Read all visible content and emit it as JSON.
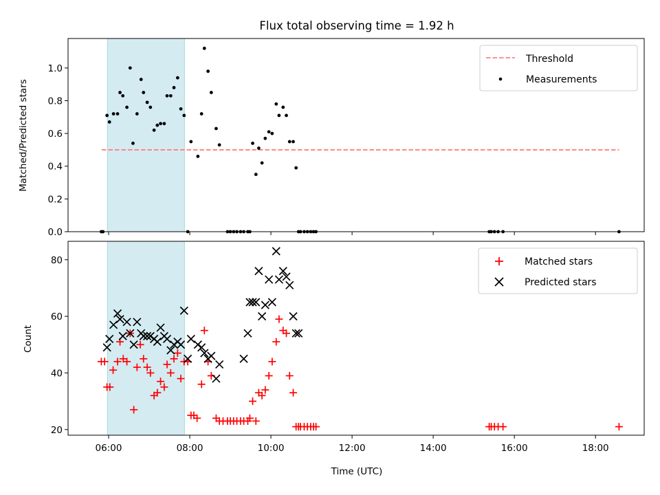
{
  "figure": {
    "title": "Flux total observing time = 1.92 h",
    "xlabel": "Time (UTC)",
    "xlim": [
      5.0,
      19.2
    ],
    "xticks": [
      6,
      8,
      10,
      12,
      14,
      16,
      18
    ],
    "xtick_labels": [
      "06:00",
      "08:00",
      "10:00",
      "12:00",
      "14:00",
      "16:00",
      "18:00"
    ],
    "shaded_interval": [
      5.97,
      7.87
    ],
    "colors": {
      "shade": "#add8e6",
      "threshold": "#ff8080",
      "measurement": "#000000",
      "matched": "#ff0000",
      "predicted": "#000000"
    }
  },
  "chart_data": [
    {
      "type": "scatter",
      "panel": "top",
      "ylabel": "Matched/Predicted stars",
      "ylim": [
        0,
        1.18
      ],
      "yticks": [
        0.0,
        0.2,
        0.4,
        0.6,
        0.8,
        1.0
      ],
      "ytick_labels": [
        "0.0",
        "0.2",
        "0.4",
        "0.6",
        "0.8",
        "1.0"
      ],
      "legend": {
        "position": "upper-right",
        "threshold_label": "Threshold",
        "measurements_label": "Measurements"
      },
      "threshold": {
        "value": 0.5,
        "x_range": [
          5.83,
          18.58
        ]
      },
      "series": [
        {
          "name": "Measurements",
          "x": [
            5.82,
            5.86,
            5.96,
            6.02,
            6.12,
            6.22,
            6.28,
            6.35,
            6.45,
            6.53,
            6.6,
            6.7,
            6.8,
            6.86,
            6.95,
            7.03,
            7.12,
            7.2,
            7.28,
            7.37,
            7.44,
            7.53,
            7.61,
            7.7,
            7.78,
            7.86,
            7.95,
            8.03,
            8.2,
            8.29,
            8.36,
            8.45,
            8.53,
            8.65,
            8.73,
            8.93,
            9.0,
            9.08,
            9.16,
            9.25,
            9.33,
            9.43,
            9.48,
            9.55,
            9.63,
            9.7,
            9.78,
            9.86,
            9.95,
            10.03,
            10.13,
            10.2,
            10.3,
            10.38,
            10.46,
            10.55,
            10.62,
            10.68,
            10.73,
            10.82,
            10.9,
            10.98,
            11.05,
            11.11,
            15.38,
            15.43,
            15.51,
            15.6,
            15.72,
            18.58
          ],
          "y": [
            0.0,
            0.0,
            0.71,
            0.67,
            0.72,
            0.72,
            0.85,
            0.83,
            0.76,
            1.0,
            0.54,
            0.72,
            0.93,
            0.85,
            0.79,
            0.76,
            0.62,
            0.65,
            0.66,
            0.66,
            0.83,
            0.83,
            0.88,
            0.94,
            0.75,
            0.71,
            0.0,
            0.55,
            0.46,
            0.72,
            1.12,
            0.98,
            0.85,
            0.63,
            0.53,
            0.0,
            0.0,
            0.0,
            0.0,
            0.0,
            0.0,
            0.0,
            0.0,
            0.54,
            0.35,
            0.51,
            0.42,
            0.57,
            0.61,
            0.6,
            0.78,
            0.71,
            0.76,
            0.71,
            0.55,
            0.55,
            0.39,
            0.0,
            0.0,
            0.0,
            0.0,
            0.0,
            0.0,
            0.0,
            0.0,
            0.0,
            0.0,
            0.0,
            0.0,
            0.0
          ]
        }
      ]
    },
    {
      "type": "scatter",
      "panel": "bottom",
      "ylabel": "Count",
      "ylim": [
        18,
        86.5
      ],
      "yticks": [
        20,
        40,
        60,
        80
      ],
      "ytick_labels": [
        "20",
        "40",
        "60",
        "80"
      ],
      "legend": {
        "position": "upper-right",
        "matched_label": "Matched stars",
        "predicted_label": "Predicted stars"
      },
      "series": [
        {
          "name": "Matched stars",
          "marker": "plus",
          "x": [
            5.82,
            5.9,
            5.96,
            6.03,
            6.11,
            6.22,
            6.28,
            6.36,
            6.45,
            6.53,
            6.62,
            6.7,
            6.78,
            6.86,
            6.95,
            7.03,
            7.12,
            7.2,
            7.28,
            7.37,
            7.44,
            7.53,
            7.61,
            7.7,
            7.78,
            7.86,
            7.95,
            8.03,
            8.1,
            8.18,
            8.29,
            8.36,
            8.45,
            8.53,
            8.65,
            8.73,
            8.82,
            8.93,
            9.0,
            9.08,
            9.16,
            9.25,
            9.33,
            9.43,
            9.48,
            9.55,
            9.63,
            9.7,
            9.78,
            9.86,
            9.95,
            10.03,
            10.13,
            10.2,
            10.3,
            10.38,
            10.46,
            10.55,
            10.62,
            10.68,
            10.73,
            10.82,
            10.9,
            10.98,
            11.05,
            11.11,
            15.38,
            15.43,
            15.51,
            15.6,
            15.72,
            18.58
          ],
          "y": [
            44,
            44,
            35,
            35,
            41,
            44,
            51,
            45,
            44,
            54,
            27,
            42,
            50,
            45,
            42,
            40,
            32,
            33,
            37,
            35,
            43,
            40,
            45,
            47,
            38,
            44,
            44,
            25,
            25,
            24,
            36,
            55,
            44,
            39,
            24,
            23,
            23,
            23,
            23,
            23,
            23,
            23,
            23,
            23,
            24,
            30,
            23,
            33,
            32,
            34,
            39,
            44,
            51,
            59,
            55,
            54,
            39,
            33,
            21,
            21,
            21,
            21,
            21,
            21,
            21,
            21,
            21,
            21,
            21,
            21,
            21,
            21
          ]
        },
        {
          "name": "Predicted stars",
          "marker": "x",
          "x": [
            5.96,
            6.02,
            6.12,
            6.22,
            6.28,
            6.35,
            6.45,
            6.53,
            6.62,
            6.7,
            6.8,
            6.86,
            6.95,
            7.03,
            7.12,
            7.2,
            7.28,
            7.37,
            7.44,
            7.53,
            7.61,
            7.7,
            7.78,
            7.86,
            7.95,
            8.03,
            8.2,
            8.29,
            8.36,
            8.45,
            8.53,
            8.65,
            8.73,
            9.33,
            9.43,
            9.48,
            9.55,
            9.63,
            9.7,
            9.78,
            9.86,
            9.95,
            10.03,
            10.13,
            10.2,
            10.3,
            10.38,
            10.46,
            10.55,
            10.62,
            10.68
          ],
          "y": [
            49,
            52,
            57,
            61,
            59,
            53,
            58,
            54,
            50,
            58,
            54,
            53,
            53,
            53,
            52,
            51,
            56,
            53,
            52,
            48,
            50,
            51,
            50,
            62,
            45,
            52,
            50,
            49,
            47,
            45,
            46,
            38,
            43,
            45,
            54,
            65,
            65,
            65,
            76,
            60,
            64,
            73,
            65,
            83,
            73,
            76,
            74,
            71,
            60,
            54,
            54
          ]
        }
      ]
    }
  ]
}
